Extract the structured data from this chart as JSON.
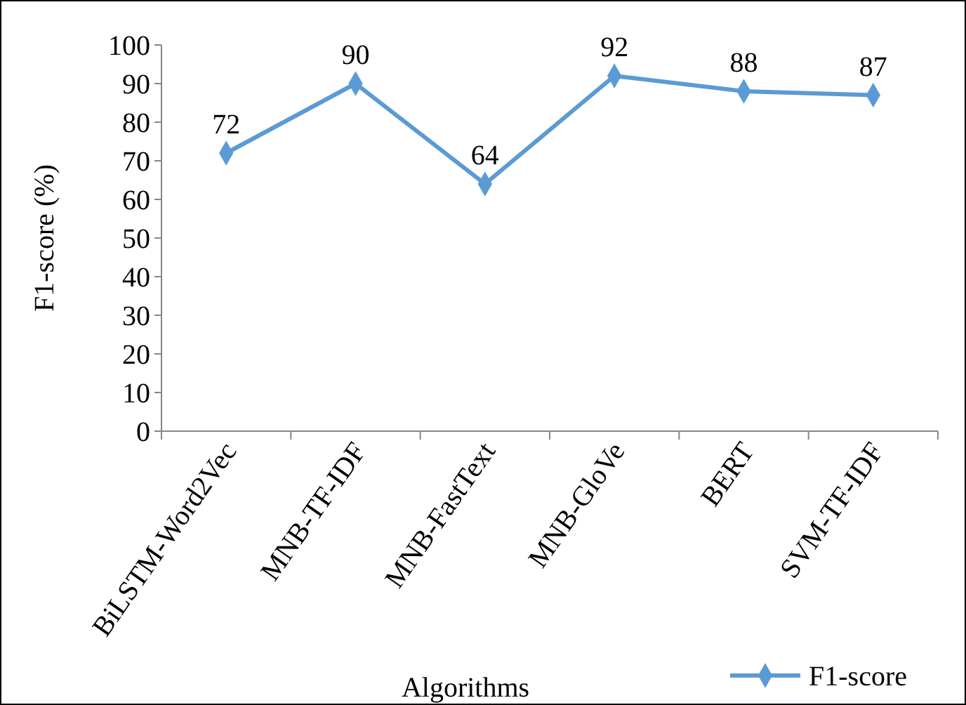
{
  "chart_data": {
    "type": "line",
    "xlabel": "Algorithms",
    "ylabel": "F1-score (%)",
    "categories": [
      "BiLSTM-Word2Vec",
      "MNB-TF-IDF",
      "MNB-FastText",
      "MNB-GloVe",
      "BERT",
      "SVM-TF-IDF"
    ],
    "series": [
      {
        "name": "F1-score",
        "color": "#5b9bd5",
        "values": [
          72,
          90,
          64,
          92,
          88,
          87
        ]
      }
    ],
    "ylim": [
      0,
      100
    ],
    "yticks": [
      0,
      10,
      20,
      30,
      40,
      50,
      60,
      70,
      80,
      90,
      100
    ],
    "grid": false,
    "legend": "bottom right",
    "marker": "diamond",
    "line_style": "solid",
    "data_labels": true
  }
}
